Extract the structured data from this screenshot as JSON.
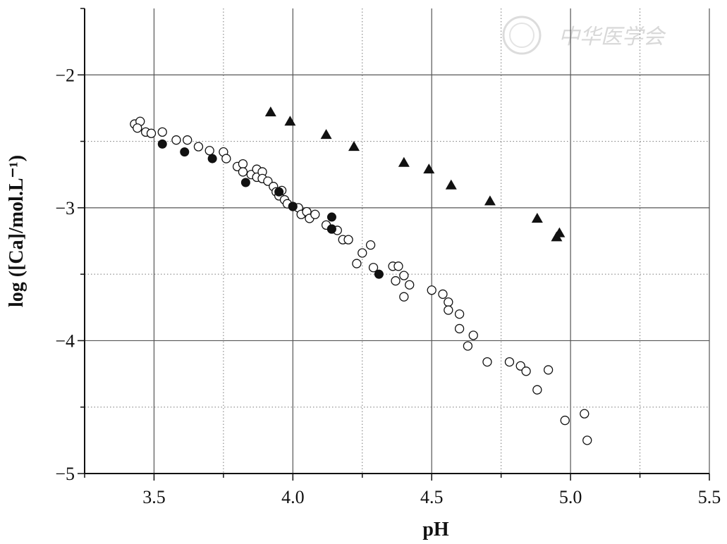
{
  "watermark": {
    "text": "中华医学会"
  },
  "chart_data": {
    "type": "scatter",
    "xlabel": "pH",
    "ylabel": "log ([Ca]/mol.L⁻¹)",
    "xlim": [
      3.25,
      5.5
    ],
    "ylim": [
      -5,
      -1.5
    ],
    "x_ticks": [
      3.5,
      4.0,
      4.5,
      5.0,
      5.5
    ],
    "x_tick_labels": [
      "3.5",
      "4.0",
      "4.5",
      "5.0",
      "5.5"
    ],
    "y_ticks": [
      -2,
      -3,
      -4,
      -5
    ],
    "y_tick_labels": [
      "−2",
      "−3",
      "−4",
      "−5"
    ],
    "grid": "major solid, minor dotted",
    "series": [
      {
        "marker": "open-circle",
        "points": [
          [
            3.43,
            -2.37
          ],
          [
            3.45,
            -2.35
          ],
          [
            3.44,
            -2.4
          ],
          [
            3.47,
            -2.43
          ],
          [
            3.49,
            -2.44
          ],
          [
            3.53,
            -2.43
          ],
          [
            3.58,
            -2.49
          ],
          [
            3.62,
            -2.49
          ],
          [
            3.66,
            -2.54
          ],
          [
            3.7,
            -2.57
          ],
          [
            3.75,
            -2.58
          ],
          [
            3.76,
            -2.63
          ],
          [
            3.8,
            -2.69
          ],
          [
            3.82,
            -2.67
          ],
          [
            3.82,
            -2.73
          ],
          [
            3.85,
            -2.75
          ],
          [
            3.87,
            -2.71
          ],
          [
            3.87,
            -2.77
          ],
          [
            3.89,
            -2.73
          ],
          [
            3.89,
            -2.78
          ],
          [
            3.91,
            -2.8
          ],
          [
            3.93,
            -2.84
          ],
          [
            3.94,
            -2.88
          ],
          [
            3.95,
            -2.91
          ],
          [
            3.96,
            -2.87
          ],
          [
            3.97,
            -2.94
          ],
          [
            3.98,
            -2.97
          ],
          [
            4.0,
            -2.99
          ],
          [
            4.02,
            -3.0
          ],
          [
            4.03,
            -3.05
          ],
          [
            4.05,
            -3.03
          ],
          [
            4.06,
            -3.08
          ],
          [
            4.08,
            -3.05
          ],
          [
            4.12,
            -3.13
          ],
          [
            4.14,
            -3.16
          ],
          [
            4.16,
            -3.17
          ],
          [
            4.18,
            -3.24
          ],
          [
            4.2,
            -3.24
          ],
          [
            4.23,
            -3.42
          ],
          [
            4.25,
            -3.34
          ],
          [
            4.28,
            -3.28
          ],
          [
            4.29,
            -3.45
          ],
          [
            4.36,
            -3.44
          ],
          [
            4.37,
            -3.55
          ],
          [
            4.38,
            -3.44
          ],
          [
            4.4,
            -3.51
          ],
          [
            4.4,
            -3.67
          ],
          [
            4.42,
            -3.58
          ],
          [
            4.5,
            -3.62
          ],
          [
            4.54,
            -3.65
          ],
          [
            4.56,
            -3.71
          ],
          [
            4.56,
            -3.77
          ],
          [
            4.6,
            -3.8
          ],
          [
            4.6,
            -3.91
          ],
          [
            4.63,
            -4.04
          ],
          [
            4.65,
            -3.96
          ],
          [
            4.7,
            -4.16
          ],
          [
            4.78,
            -4.16
          ],
          [
            4.82,
            -4.19
          ],
          [
            4.84,
            -4.23
          ],
          [
            4.88,
            -4.37
          ],
          [
            4.92,
            -4.22
          ],
          [
            4.98,
            -4.6
          ],
          [
            5.05,
            -4.55
          ],
          [
            5.06,
            -4.75
          ]
        ]
      },
      {
        "marker": "filled-circle",
        "points": [
          [
            3.53,
            -2.52
          ],
          [
            3.61,
            -2.58
          ],
          [
            3.71,
            -2.63
          ],
          [
            3.83,
            -2.81
          ],
          [
            3.95,
            -2.88
          ],
          [
            4.0,
            -2.99
          ],
          [
            4.14,
            -3.07
          ],
          [
            4.14,
            -3.16
          ],
          [
            4.31,
            -3.5
          ]
        ]
      },
      {
        "marker": "filled-triangle",
        "points": [
          [
            3.92,
            -2.28
          ],
          [
            3.99,
            -2.35
          ],
          [
            4.12,
            -2.45
          ],
          [
            4.22,
            -2.54
          ],
          [
            4.4,
            -2.66
          ],
          [
            4.49,
            -2.71
          ],
          [
            4.57,
            -2.83
          ],
          [
            4.71,
            -2.95
          ],
          [
            4.88,
            -3.08
          ],
          [
            4.95,
            -3.22
          ],
          [
            4.96,
            -3.19
          ]
        ]
      }
    ]
  }
}
